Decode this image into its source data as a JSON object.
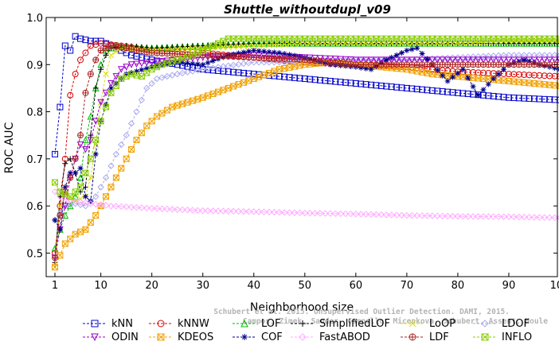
{
  "chart_data": {
    "type": "line",
    "title": "Shuttle_withoutdupl_v09",
    "xlabel": "Neighborhood size",
    "ylabel": "ROC AUC",
    "xlim": [
      1,
      100
    ],
    "ylim": [
      0.45,
      1.0
    ],
    "x_ticks": [
      1,
      10,
      20,
      30,
      40,
      50,
      60,
      70,
      80,
      90,
      100
    ],
    "y_ticks": [
      0.5,
      0.6,
      0.7,
      0.8,
      0.9,
      1.0
    ],
    "x_tick_labels": [
      "1",
      "10",
      "20",
      "30",
      "40",
      "50",
      "60",
      "70",
      "80",
      "90",
      "100"
    ],
    "y_tick_labels": [
      "0.5",
      "0.6",
      "0.7",
      "0.8",
      "0.9",
      "1.0"
    ],
    "grid": false,
    "legend_position": "bottom",
    "watermark": [
      "Schubert et al. 2015. Unsupervised Outlier Detection. DAMI, 2015.",
      "Campos, Zimek, Sander, Campello, Micenkova, Schubert, Assent, Houle"
    ],
    "series": [
      {
        "name": "kNN",
        "color": "#0000cc",
        "marker": "square",
        "points": [
          [
            1,
            0.71
          ],
          [
            2,
            0.81
          ],
          [
            3,
            0.94
          ],
          [
            4,
            0.93
          ],
          [
            5,
            0.96
          ],
          [
            6,
            0.955
          ],
          [
            8,
            0.95
          ],
          [
            10,
            0.95
          ],
          [
            13,
            0.935
          ],
          [
            16,
            0.92
          ],
          [
            20,
            0.91
          ],
          [
            25,
            0.9
          ],
          [
            30,
            0.89
          ],
          [
            40,
            0.88
          ],
          [
            50,
            0.87
          ],
          [
            60,
            0.86
          ],
          [
            70,
            0.85
          ],
          [
            80,
            0.84
          ],
          [
            90,
            0.83
          ],
          [
            100,
            0.825
          ]
        ]
      },
      {
        "name": "kNNW",
        "color": "#dd0000",
        "marker": "circle",
        "points": [
          [
            1,
            0.5
          ],
          [
            2,
            0.6
          ],
          [
            3,
            0.7
          ],
          [
            4,
            0.835
          ],
          [
            5,
            0.88
          ],
          [
            6,
            0.91
          ],
          [
            8,
            0.94
          ],
          [
            10,
            0.945
          ],
          [
            14,
            0.94
          ],
          [
            20,
            0.93
          ],
          [
            30,
            0.925
          ],
          [
            40,
            0.915
          ],
          [
            50,
            0.905
          ],
          [
            60,
            0.9
          ],
          [
            70,
            0.895
          ],
          [
            80,
            0.885
          ],
          [
            90,
            0.88
          ],
          [
            100,
            0.875
          ]
        ]
      },
      {
        "name": "LOF",
        "color": "#00bb00",
        "marker": "triangle",
        "points": [
          [
            1,
            0.51
          ],
          [
            2,
            0.55
          ],
          [
            3,
            0.58
          ],
          [
            5,
            0.62
          ],
          [
            6,
            0.66
          ],
          [
            7,
            0.74
          ],
          [
            8,
            0.79
          ],
          [
            9,
            0.85
          ],
          [
            10,
            0.9
          ],
          [
            11,
            0.93
          ],
          [
            13,
            0.94
          ],
          [
            20,
            0.935
          ],
          [
            30,
            0.94
          ],
          [
            40,
            0.945
          ],
          [
            50,
            0.945
          ],
          [
            60,
            0.945
          ],
          [
            70,
            0.945
          ],
          [
            80,
            0.945
          ],
          [
            90,
            0.945
          ],
          [
            100,
            0.945
          ]
        ]
      },
      {
        "name": "SimplifiedLOF",
        "color": "#000000",
        "marker": "plus",
        "points": [
          [
            1,
            0.48
          ],
          [
            2,
            0.62
          ],
          [
            3,
            0.69
          ],
          [
            4,
            0.7
          ],
          [
            5,
            0.67
          ],
          [
            6,
            0.63
          ],
          [
            7,
            0.64
          ],
          [
            8,
            0.75
          ],
          [
            9,
            0.85
          ],
          [
            10,
            0.89
          ],
          [
            11,
            0.92
          ],
          [
            12,
            0.935
          ],
          [
            15,
            0.94
          ],
          [
            20,
            0.935
          ],
          [
            30,
            0.94
          ],
          [
            40,
            0.945
          ],
          [
            50,
            0.945
          ],
          [
            60,
            0.945
          ],
          [
            70,
            0.945
          ],
          [
            80,
            0.945
          ],
          [
            90,
            0.945
          ],
          [
            100,
            0.945
          ]
        ]
      },
      {
        "name": "LoOP",
        "color": "#dddd00",
        "marker": "x",
        "points": [
          [
            1,
            0.47
          ],
          [
            2,
            0.6
          ],
          [
            3,
            0.62
          ],
          [
            5,
            0.61
          ],
          [
            7,
            0.62
          ],
          [
            8,
            0.66
          ],
          [
            9,
            0.73
          ],
          [
            10,
            0.82
          ],
          [
            11,
            0.88
          ],
          [
            12,
            0.92
          ],
          [
            14,
            0.935
          ],
          [
            20,
            0.93
          ],
          [
            30,
            0.935
          ],
          [
            40,
            0.94
          ],
          [
            50,
            0.945
          ],
          [
            60,
            0.945
          ],
          [
            70,
            0.945
          ],
          [
            80,
            0.945
          ],
          [
            90,
            0.95
          ],
          [
            100,
            0.95
          ]
        ]
      },
      {
        "name": "LDOF",
        "color": "#aaaaee",
        "marker": "diamond",
        "points": [
          [
            1,
            0.57
          ],
          [
            3,
            0.6
          ],
          [
            5,
            0.605
          ],
          [
            7,
            0.6
          ],
          [
            9,
            0.62
          ],
          [
            11,
            0.66
          ],
          [
            13,
            0.71
          ],
          [
            15,
            0.75
          ],
          [
            17,
            0.8
          ],
          [
            19,
            0.85
          ],
          [
            21,
            0.87
          ],
          [
            25,
            0.88
          ],
          [
            30,
            0.89
          ],
          [
            40,
            0.905
          ],
          [
            50,
            0.905
          ],
          [
            60,
            0.91
          ],
          [
            70,
            0.91
          ],
          [
            80,
            0.915
          ],
          [
            90,
            0.92
          ],
          [
            100,
            0.92
          ]
        ]
      },
      {
        "name": "ODIN",
        "color": "#9900cc",
        "marker": "triangle-down",
        "points": [
          [
            1,
            0.49
          ],
          [
            2,
            0.55
          ],
          [
            3,
            0.6
          ],
          [
            4,
            0.66
          ],
          [
            5,
            0.7
          ],
          [
            6,
            0.73
          ],
          [
            7,
            0.72
          ],
          [
            8,
            0.74
          ],
          [
            9,
            0.78
          ],
          [
            10,
            0.82
          ],
          [
            12,
            0.86
          ],
          [
            14,
            0.89
          ],
          [
            16,
            0.9
          ],
          [
            20,
            0.905
          ],
          [
            25,
            0.91
          ],
          [
            30,
            0.915
          ],
          [
            40,
            0.92
          ],
          [
            50,
            0.915
          ],
          [
            60,
            0.91
          ],
          [
            70,
            0.91
          ],
          [
            80,
            0.91
          ],
          [
            90,
            0.91
          ],
          [
            100,
            0.91
          ]
        ]
      },
      {
        "name": "KDEOS",
        "color": "#f0a000",
        "marker": "square-x",
        "points": [
          [
            1,
            0.47
          ],
          [
            3,
            0.52
          ],
          [
            5,
            0.54
          ],
          [
            7,
            0.55
          ],
          [
            9,
            0.58
          ],
          [
            11,
            0.62
          ],
          [
            13,
            0.66
          ],
          [
            15,
            0.7
          ],
          [
            17,
            0.74
          ],
          [
            19,
            0.77
          ],
          [
            21,
            0.79
          ],
          [
            24,
            0.81
          ],
          [
            27,
            0.82
          ],
          [
            30,
            0.83
          ],
          [
            35,
            0.85
          ],
          [
            40,
            0.87
          ],
          [
            45,
            0.89
          ],
          [
            50,
            0.9
          ],
          [
            55,
            0.905
          ],
          [
            60,
            0.9
          ],
          [
            65,
            0.895
          ],
          [
            70,
            0.89
          ],
          [
            75,
            0.88
          ],
          [
            80,
            0.875
          ],
          [
            85,
            0.87
          ],
          [
            90,
            0.865
          ],
          [
            95,
            0.86
          ],
          [
            100,
            0.855
          ]
        ]
      },
      {
        "name": "COF",
        "color": "#000088",
        "marker": "star",
        "points": [
          [
            1,
            0.57
          ],
          [
            2,
            0.55
          ],
          [
            3,
            0.64
          ],
          [
            4,
            0.67
          ],
          [
            5,
            0.67
          ],
          [
            6,
            0.68
          ],
          [
            7,
            0.62
          ],
          [
            8,
            0.61
          ],
          [
            9,
            0.71
          ],
          [
            10,
            0.78
          ],
          [
            12,
            0.85
          ],
          [
            15,
            0.88
          ],
          [
            20,
            0.895
          ],
          [
            25,
            0.905
          ],
          [
            30,
            0.9
          ],
          [
            35,
            0.92
          ],
          [
            40,
            0.93
          ],
          [
            45,
            0.925
          ],
          [
            50,
            0.915
          ],
          [
            55,
            0.9
          ],
          [
            60,
            0.895
          ],
          [
            63,
            0.89
          ],
          [
            66,
            0.91
          ],
          [
            70,
            0.93
          ],
          [
            72,
            0.935
          ],
          [
            75,
            0.9
          ],
          [
            78,
            0.865
          ],
          [
            81,
            0.89
          ],
          [
            84,
            0.835
          ],
          [
            87,
            0.87
          ],
          [
            90,
            0.9
          ],
          [
            93,
            0.91
          ],
          [
            96,
            0.9
          ],
          [
            100,
            0.89
          ]
        ]
      },
      {
        "name": "FastABOD",
        "color": "#ffaaff",
        "marker": "diamond",
        "points": [
          [
            1,
            0.63
          ],
          [
            2,
            0.62
          ],
          [
            3,
            0.615
          ],
          [
            5,
            0.61
          ],
          [
            8,
            0.605
          ],
          [
            12,
            0.6
          ],
          [
            20,
            0.595
          ],
          [
            30,
            0.59
          ],
          [
            40,
            0.588
          ],
          [
            50,
            0.585
          ],
          [
            60,
            0.583
          ],
          [
            70,
            0.58
          ],
          [
            80,
            0.578
          ],
          [
            90,
            0.577
          ],
          [
            100,
            0.575
          ]
        ]
      },
      {
        "name": "LDF",
        "color": "#aa2222",
        "marker": "circle-plus",
        "points": [
          [
            1,
            0.49
          ],
          [
            2,
            0.58
          ],
          [
            3,
            0.63
          ],
          [
            4,
            0.66
          ],
          [
            5,
            0.7
          ],
          [
            6,
            0.75
          ],
          [
            7,
            0.84
          ],
          [
            8,
            0.88
          ],
          [
            9,
            0.91
          ],
          [
            10,
            0.93
          ],
          [
            12,
            0.94
          ],
          [
            15,
            0.935
          ],
          [
            20,
            0.925
          ],
          [
            30,
            0.92
          ],
          [
            40,
            0.915
          ],
          [
            50,
            0.91
          ],
          [
            60,
            0.9
          ],
          [
            70,
            0.9
          ],
          [
            80,
            0.9
          ],
          [
            90,
            0.9
          ],
          [
            100,
            0.9
          ]
        ]
      },
      {
        "name": "INFLO",
        "color": "#88cc00",
        "marker": "square-x",
        "points": [
          [
            1,
            0.65
          ],
          [
            2,
            0.63
          ],
          [
            4,
            0.62
          ],
          [
            6,
            0.64
          ],
          [
            8,
            0.7
          ],
          [
            10,
            0.78
          ],
          [
            12,
            0.84
          ],
          [
            14,
            0.87
          ],
          [
            16,
            0.88
          ],
          [
            18,
            0.875
          ],
          [
            20,
            0.89
          ],
          [
            22,
            0.9
          ],
          [
            25,
            0.91
          ],
          [
            28,
            0.92
          ],
          [
            30,
            0.93
          ],
          [
            35,
            0.955
          ],
          [
            40,
            0.955
          ],
          [
            50,
            0.955
          ],
          [
            60,
            0.955
          ],
          [
            70,
            0.955
          ],
          [
            80,
            0.955
          ],
          [
            90,
            0.955
          ],
          [
            100,
            0.955
          ]
        ]
      }
    ]
  }
}
